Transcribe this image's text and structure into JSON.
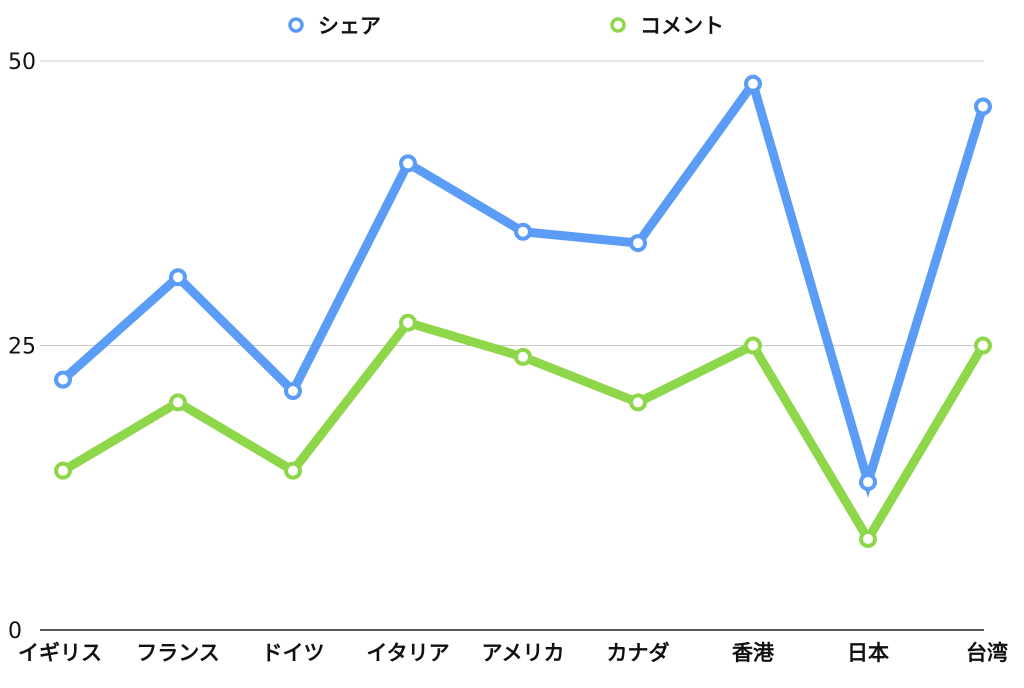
{
  "chart_data": {
    "type": "line",
    "categories": [
      "イギリス",
      "フランス",
      "ドイツ",
      "イタリア",
      "アメリカ",
      "カナダ",
      "香港",
      "日本",
      "台湾"
    ],
    "series": [
      {
        "name": "シェア",
        "color": "#5B9CF6",
        "values": [
          22,
          31,
          21,
          41,
          35,
          34,
          48,
          13,
          46
        ]
      },
      {
        "name": "コメント",
        "color": "#8ED64A",
        "values": [
          14,
          20,
          14,
          27,
          24,
          20,
          25,
          8,
          25
        ]
      }
    ],
    "yticks": [
      "0",
      "25",
      "50"
    ],
    "ylim": [
      0,
      50
    ],
    "grid": true,
    "legend_position": "top-center",
    "title": "",
    "xlabel": "",
    "ylabel": ""
  }
}
